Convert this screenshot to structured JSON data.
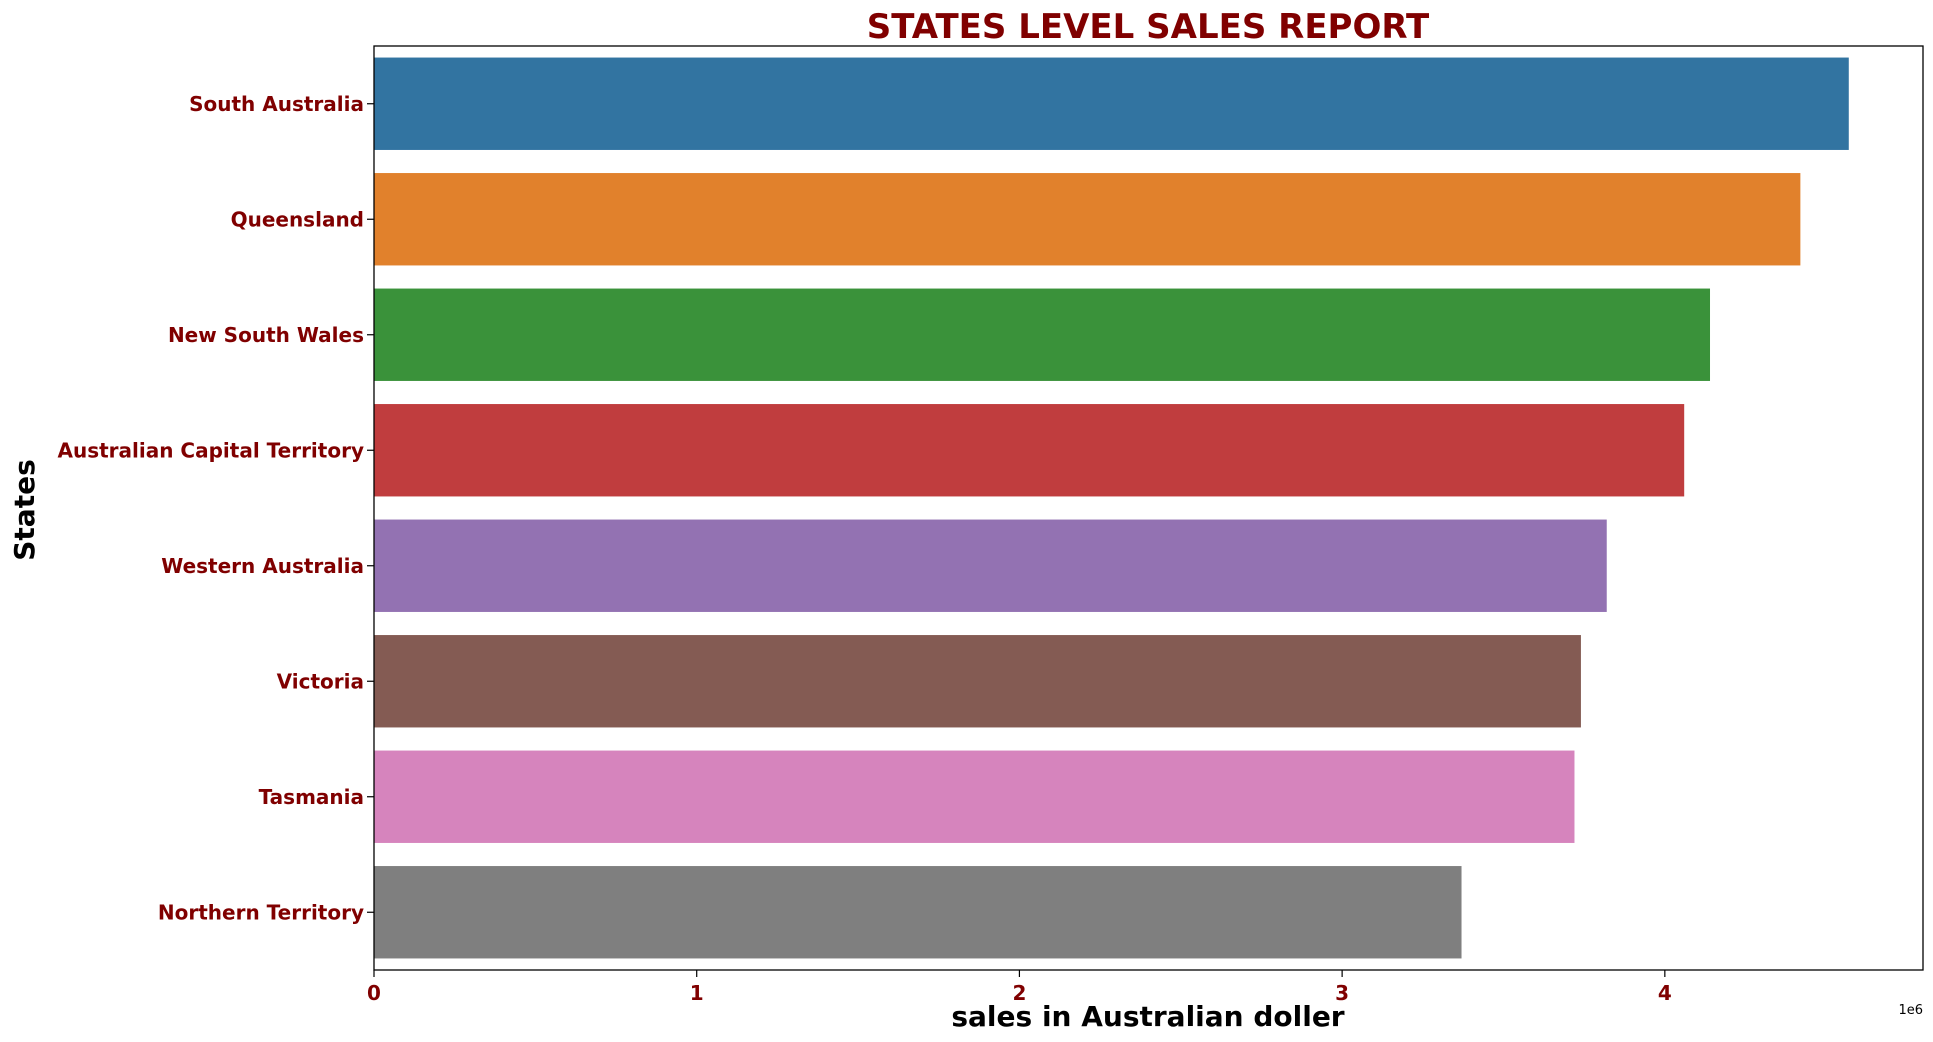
{
  "chart_data": {
    "type": "bar",
    "orientation": "horizontal",
    "title": "STATES LEVEL SALES REPORT",
    "xlabel": "sales in Australian doller",
    "ylabel": "States",
    "x_offset_label": "1e6",
    "xlim": [
      0,
      4800000
    ],
    "xticks": [
      0,
      1000000,
      2000000,
      3000000,
      4000000
    ],
    "xtick_labels": [
      "0",
      "1",
      "2",
      "3",
      "4"
    ],
    "categories": [
      "South Australia",
      "Queensland",
      "New South Wales",
      "Australian Capital Territory",
      "Western Australia",
      "Victoria",
      "Tasmania",
      "Northern Territory"
    ],
    "values": [
      4570000,
      4420000,
      4140000,
      4060000,
      3820000,
      3740000,
      3720000,
      3370000
    ],
    "colors": [
      "#3274a1",
      "#e1812c",
      "#3a923a",
      "#c03d3e",
      "#9372b2",
      "#845b53",
      "#d684bd",
      "#7f7f7f"
    ],
    "grid": false,
    "legend": "none"
  }
}
